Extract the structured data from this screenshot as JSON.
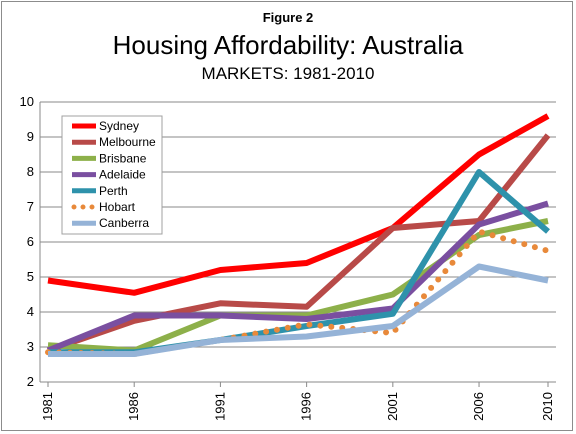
{
  "figure_label": "Figure 2",
  "chart_data": {
    "type": "line",
    "title": "Housing Affordability: Australia",
    "subtitle": "MARKETS: 1981-2010",
    "xlabel": "",
    "ylabel": "",
    "x": [
      1981,
      1986,
      1991,
      1996,
      2001,
      2006,
      2010
    ],
    "x_tick_labels": [
      "1981",
      "1986",
      "1991",
      "1996",
      "2001",
      "2006",
      "2010"
    ],
    "ylim": [
      2,
      10
    ],
    "y_ticks": [
      2,
      3,
      4,
      5,
      6,
      7,
      8,
      9,
      10
    ],
    "grid": "horizontal",
    "legend_position": "top-left",
    "series": [
      {
        "name": "Sydney",
        "color": "#ff0000",
        "style": "solid",
        "values": [
          4.9,
          4.55,
          5.2,
          5.4,
          6.4,
          8.5,
          9.6
        ]
      },
      {
        "name": "Melbourne",
        "color": "#b84a48",
        "style": "solid",
        "values": [
          2.9,
          3.75,
          4.25,
          4.15,
          6.4,
          6.6,
          9.05
        ]
      },
      {
        "name": "Brisbane",
        "color": "#8db04a",
        "style": "solid",
        "values": [
          3.05,
          2.9,
          3.9,
          3.9,
          4.5,
          6.2,
          6.6
        ]
      },
      {
        "name": "Adelaide",
        "color": "#7a4fa0",
        "style": "solid",
        "values": [
          2.9,
          3.9,
          3.9,
          3.8,
          4.1,
          6.5,
          7.1
        ]
      },
      {
        "name": "Perth",
        "color": "#2e92ab",
        "style": "solid",
        "values": [
          2.85,
          2.85,
          3.2,
          3.6,
          3.95,
          8.0,
          6.3
        ]
      },
      {
        "name": "Hobart",
        "color": "#e8893a",
        "style": "dotted",
        "values": [
          2.85,
          2.8,
          3.2,
          3.65,
          3.4,
          6.3,
          5.75
        ]
      },
      {
        "name": "Canberra",
        "color": "#95b3d7",
        "style": "solid",
        "values": [
          2.8,
          2.8,
          3.2,
          3.3,
          3.6,
          5.3,
          4.9
        ]
      }
    ]
  }
}
